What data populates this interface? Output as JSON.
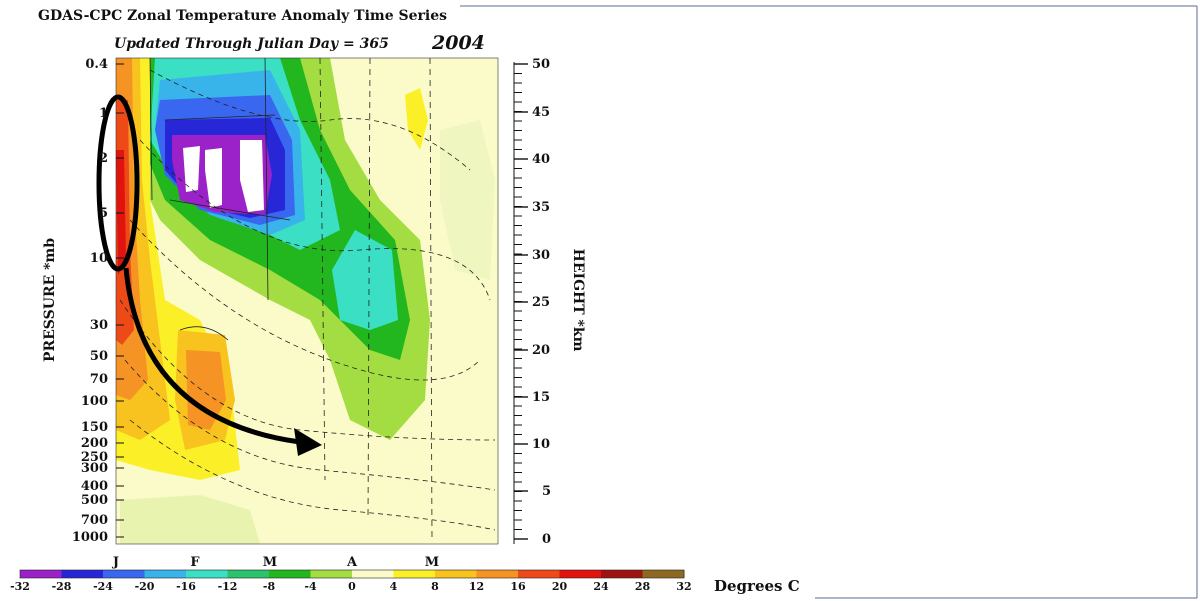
{
  "chart_data": {
    "type": "heatmap",
    "title": "GDAS-CPC Zonal Temperature Anomaly Time Series",
    "subtitle": "Updated Through Julian Day = 365",
    "year": "2004",
    "ylabel_left": "PRESSURE *mb",
    "ylabel_right": "HEIGHT *km",
    "colorbar_units": "Degrees C",
    "months": [
      "J",
      "F",
      "M",
      "A",
      "M"
    ],
    "pressure_ticks": [
      "0.4",
      "1",
      "2",
      "5",
      "10",
      "30",
      "50",
      "70",
      "100",
      "150",
      "200",
      "250",
      "300",
      "400",
      "500",
      "700",
      "1000"
    ],
    "height_ticks": [
      "50",
      "45",
      "40",
      "35",
      "30",
      "25",
      "20",
      "15",
      "10",
      "5",
      "0"
    ],
    "colorbar_levels": [
      "-32",
      "-28",
      "-24",
      "-20",
      "-16",
      "-12",
      "-8",
      "-4",
      "0",
      "4",
      "8",
      "12",
      "16",
      "20",
      "24",
      "28",
      "32"
    ],
    "colorbar_colors": [
      "#9b22c8",
      "#2727d8",
      "#3a67f0",
      "#38b4ea",
      "#3be0c4",
      "#2bc36b",
      "#22b71e",
      "#a4dd41",
      "#fbfbc9",
      "#fbf028",
      "#f8c21f",
      "#f59324",
      "#ee4a18",
      "#e0130f",
      "#a01410",
      "#8e6a20"
    ]
  },
  "anomaly_features": [
    {
      "name": "cold stratospheric anomaly",
      "kind": "cold"
    },
    {
      "name": "warm early-january column",
      "kind": "warm"
    },
    {
      "name": "downward propagation arrow",
      "kind": "annotation"
    }
  ]
}
